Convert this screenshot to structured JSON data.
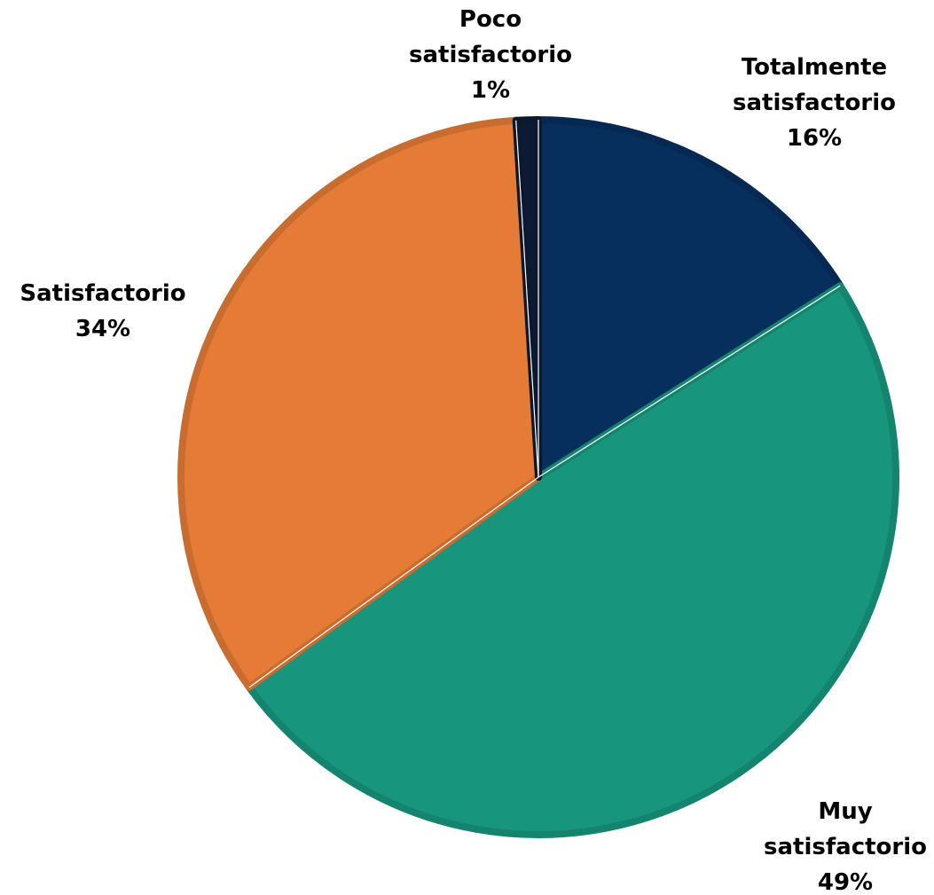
{
  "chart_data": {
    "type": "pie",
    "slices": [
      {
        "label_lines": [
          "Totalmente",
          "satisfactorio"
        ],
        "value": 16,
        "value_label": "16%",
        "color": "#062f5e"
      },
      {
        "label_lines": [
          "Muy",
          "satisfactorio"
        ],
        "value": 49,
        "value_label": "49%",
        "color": "#17967d"
      },
      {
        "label_lines": [
          "Satisfactorio"
        ],
        "value": 34,
        "value_label": "34%",
        "color": "#e47b37"
      },
      {
        "label_lines": [
          "Poco",
          "satisfactorio"
        ],
        "value": 1,
        "value_label": "1%",
        "color": "#0c1b33"
      }
    ],
    "start_angle_deg": 0,
    "direction": "clockwise",
    "legend": "none",
    "data_labels": "outside"
  }
}
